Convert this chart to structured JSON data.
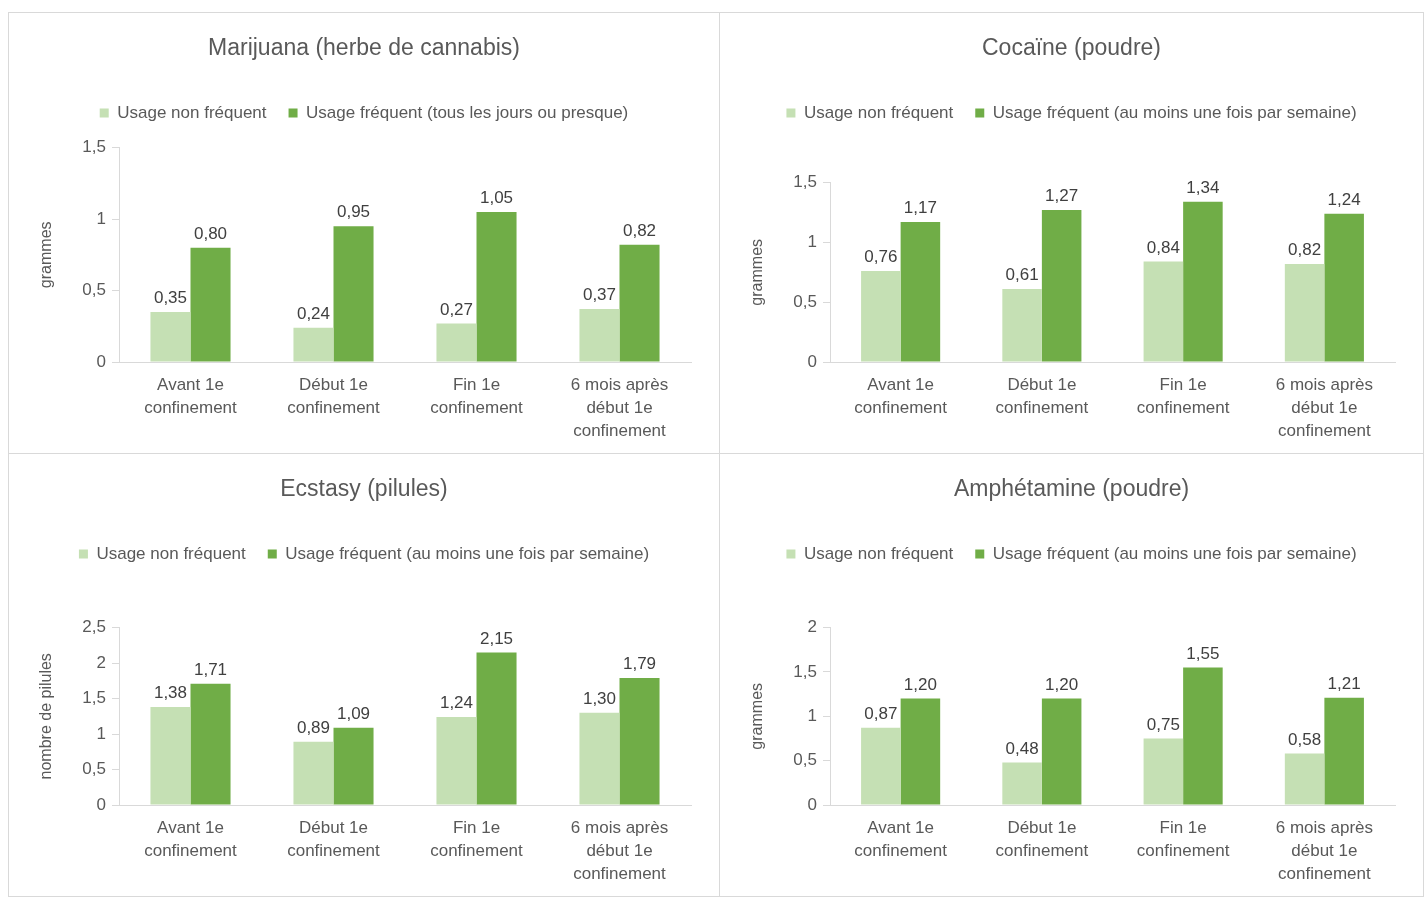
{
  "chart_data": [
    {
      "type": "bar",
      "title": "Marijuana (herbe de cannabis)",
      "ylabel": "grammes",
      "legend": "top",
      "categories": [
        "Avant 1e confinement",
        "Début 1e confinement",
        "Fin 1e confinement",
        "6 mois après début 1e confinement"
      ],
      "series": [
        {
          "name": "Usage non fréquent",
          "color": "#c5e0b4",
          "values": [
            0.35,
            0.24,
            0.27,
            0.37
          ],
          "value_labels": [
            "0,35",
            "0,24",
            "0,27",
            "0,37"
          ]
        },
        {
          "name": "Usage fréquent (tous les jours ou presque)",
          "color": "#70ad47",
          "values": [
            0.8,
            0.95,
            1.05,
            0.82
          ],
          "value_labels": [
            "0,80",
            "0,95",
            "1,05",
            "0,82"
          ]
        }
      ],
      "ylim": [
        0,
        1.5
      ],
      "yticks": [
        0,
        {
          "value": 0.5,
          "label": "0,5"
        },
        1,
        {
          "value": 1.5,
          "label": "1,5"
        }
      ]
    },
    {
      "type": "bar",
      "title": "Cocaïne (poudre)",
      "ylabel": "grammes",
      "legend": "top",
      "categories": [
        "Avant 1e confinement",
        "Début 1e confinement",
        "Fin 1e confinement",
        "6 mois après début 1e confinement"
      ],
      "series": [
        {
          "name": "Usage non fréquent",
          "color": "#c5e0b4",
          "values": [
            0.76,
            0.61,
            0.84,
            0.82
          ],
          "value_labels": [
            "0,76",
            "0,61",
            "0,84",
            "0,82"
          ]
        },
        {
          "name": "Usage fréquent (au moins une fois par semaine)",
          "color": "#70ad47",
          "values": [
            1.17,
            1.27,
            1.34,
            1.24
          ],
          "value_labels": [
            "1,17",
            "1,27",
            "1,34",
            "1,24"
          ]
        }
      ],
      "ylim": [
        0,
        1.5
      ],
      "yticks": [
        0,
        {
          "value": 0.5,
          "label": "0,5"
        },
        1,
        {
          "value": 1.5,
          "label": "1,5"
        }
      ]
    },
    {
      "type": "bar",
      "title": "Ecstasy (pilules)",
      "ylabel": "nombre de pilules",
      "legend": "top",
      "categories": [
        "Avant 1e confinement",
        "Début 1e confinement",
        "Fin 1e confinement",
        "6 mois après début 1e confinement"
      ],
      "series": [
        {
          "name": "Usage non fréquent",
          "color": "#c5e0b4",
          "values": [
            1.38,
            0.89,
            1.24,
            1.3
          ],
          "value_labels": [
            "1,38",
            "0,89",
            "1,24",
            "1,30"
          ]
        },
        {
          "name": "Usage fréquent (au moins une fois par semaine)",
          "color": "#70ad47",
          "values": [
            1.71,
            1.09,
            2.15,
            1.79
          ],
          "value_labels": [
            "1,71",
            "1,09",
            "2,15",
            "1,79"
          ]
        }
      ],
      "ylim": [
        0,
        2.5
      ],
      "yticks": [
        0,
        {
          "value": 0.5,
          "label": "0,5"
        },
        1,
        {
          "value": 1.5,
          "label": "1,5"
        },
        2,
        {
          "value": 2.5,
          "label": "2,5"
        }
      ]
    },
    {
      "type": "bar",
      "title": "Amphétamine (poudre)",
      "ylabel": "grammes",
      "legend": "top",
      "categories": [
        "Avant 1e confinement",
        "Début 1e confinement",
        "Fin 1e confinement",
        "6 mois après début 1e confinement"
      ],
      "series": [
        {
          "name": "Usage non fréquent",
          "color": "#c5e0b4",
          "values": [
            0.87,
            0.48,
            0.75,
            0.58
          ],
          "value_labels": [
            "0,87",
            "0,48",
            "0,75",
            "0,58"
          ]
        },
        {
          "name": "Usage fréquent (au moins une fois par semaine)",
          "color": "#70ad47",
          "values": [
            1.2,
            1.2,
            1.55,
            1.21
          ],
          "value_labels": [
            "1,20",
            "1,20",
            "1,55",
            "1,21"
          ]
        }
      ],
      "ylim": [
        0,
        2
      ],
      "yticks": [
        0,
        {
          "value": 0.5,
          "label": "0,5"
        },
        1,
        {
          "value": 1.5,
          "label": "1,5"
        },
        2
      ]
    }
  ]
}
